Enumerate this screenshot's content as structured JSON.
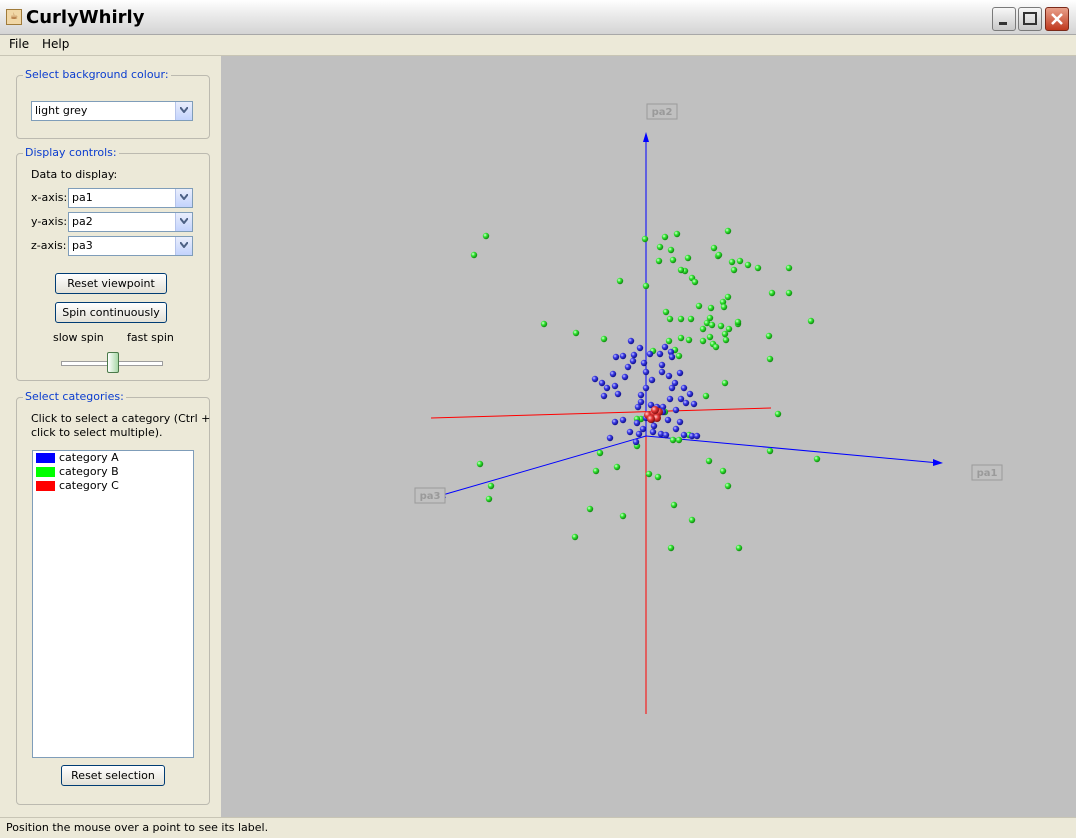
{
  "window": {
    "title": "CurlyWhirly",
    "app_icon": "java-cup-icon"
  },
  "menu": {
    "file": "File",
    "help": "Help"
  },
  "background_panel": {
    "title": "Select background colour:",
    "selected": "light grey"
  },
  "display_panel": {
    "title": "Display controls:",
    "data_label": "Data to display:",
    "x_label": "x-axis:",
    "x_value": "pa1",
    "y_label": "y-axis:",
    "y_value": "pa2",
    "z_label": "z-axis:",
    "z_value": "pa3",
    "reset_viewpoint": "Reset viewpoint",
    "spin_continuously": "Spin continuously",
    "slow_spin": "slow spin",
    "fast_spin": "fast spin",
    "spin_speed_fraction": 0.5
  },
  "categories_panel": {
    "title": "Select categories:",
    "hint_line1": "Click to select a category (Ctrl +",
    "hint_line2": "click to select multiple).",
    "items": [
      {
        "label": "category A",
        "color": "#0000ff"
      },
      {
        "label": "category B",
        "color": "#00ff00"
      },
      {
        "label": "category C",
        "color": "#ff0000"
      }
    ],
    "reset_selection": "Reset selection"
  },
  "plot": {
    "axis_labels": {
      "x": "pa1",
      "y": "pa2",
      "z": "pa3"
    },
    "background": "#c0c0c0"
  },
  "status": {
    "text": "Position the mouse over a point to see its label."
  }
}
